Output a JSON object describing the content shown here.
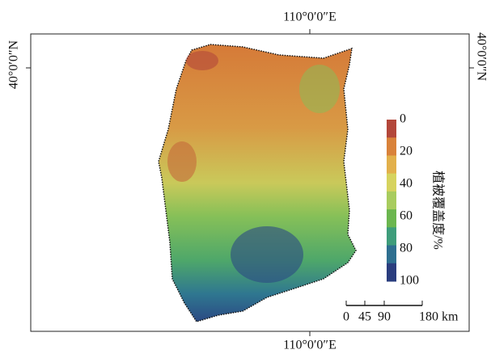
{
  "map": {
    "coordinate_labels": {
      "top": "110°0′0″E",
      "bottom": "110°0′0″E",
      "left": "40°0′0″N",
      "right": "40°0′0″N"
    },
    "legend": {
      "title": "植被覆盖度/%",
      "ticks": [
        0,
        20,
        40,
        60,
        80,
        100
      ],
      "colors": [
        "#b3473a",
        "#d9823a",
        "#e2b04b",
        "#d6d35e",
        "#a8cc5e",
        "#6bb64f",
        "#3e9d7b",
        "#2e6f90",
        "#2a3d7e"
      ]
    },
    "scale_bar": {
      "labels": [
        "0",
        "45",
        "90",
        "180 km"
      ]
    }
  }
}
